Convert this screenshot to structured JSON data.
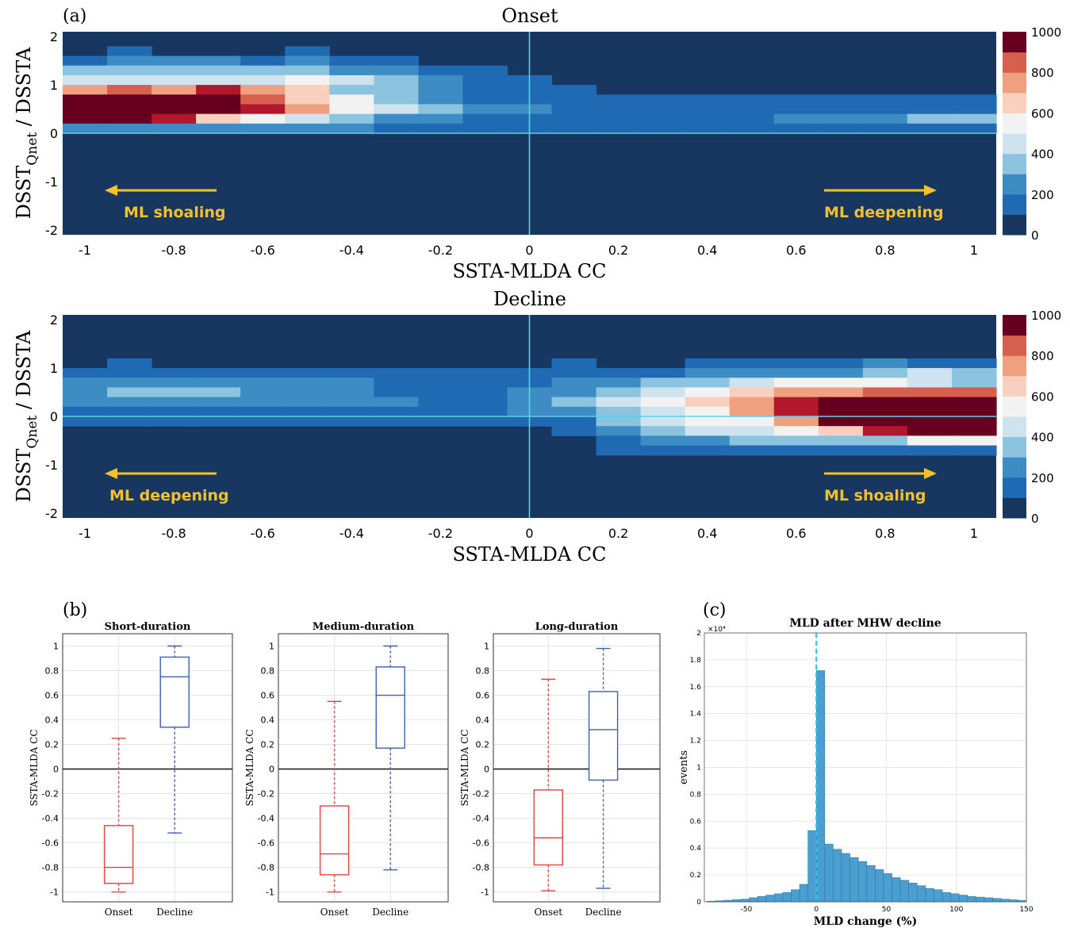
{
  "panel_labels": {
    "a": "(a)",
    "b": "(b)",
    "c": "(c)"
  },
  "chart_data": [
    {
      "type": "heatmap",
      "title": "Onset",
      "xlabel": "SSTA-MLDA  CC",
      "ylabel_main": "DSST",
      "ylabel_sub": "Qnet",
      "ylabel_tail": " / DSSTA",
      "xlim": [
        -1.05,
        1.05
      ],
      "ylim": [
        -2.1,
        2.1
      ],
      "xticks": [
        "-1",
        "-0.8",
        "-0.6",
        "-0.4",
        "-0.2",
        "0",
        "0.2",
        "0.4",
        "0.6",
        "0.8",
        "1"
      ],
      "yticks": [
        "-2",
        "-1",
        "0",
        "1",
        "2"
      ],
      "colorbar_ticks": [
        "0",
        "200",
        "400",
        "600",
        "800",
        "1000"
      ],
      "annotations": [
        {
          "text": "ML shoaling",
          "arrow": "left"
        },
        {
          "text": "ML deepening",
          "arrow": "right"
        }
      ],
      "colors": [
        "#173660",
        "#1f6ab3",
        "#3d8dc4",
        "#8cc3de",
        "#cfe3ef",
        "#f2f2f2",
        "#f8d0bd",
        "#f0a07e",
        "#d6604d",
        "#b2182b",
        "#67001f"
      ],
      "column_x_centers": [
        -1.0,
        -0.9,
        -0.8,
        -0.7,
        -0.6,
        -0.5,
        -0.4,
        -0.3,
        -0.2,
        -0.1,
        0.0,
        0.1,
        0.2,
        0.3,
        0.4,
        0.5,
        0.6,
        0.7,
        0.8,
        0.9,
        1.0
      ],
      "row_y_centers": [
        1.9,
        1.7,
        1.5,
        1.3,
        1.1,
        0.9,
        0.7,
        0.5,
        0.3,
        0.1,
        -0.1
      ],
      "levels": [
        [
          0,
          0,
          0,
          0,
          0,
          0,
          0,
          0,
          0,
          0,
          0,
          0,
          0,
          0,
          0,
          0,
          0,
          0,
          0,
          0,
          0
        ],
        [
          0,
          1,
          0,
          0,
          0,
          1,
          0,
          0,
          0,
          0,
          0,
          0,
          0,
          0,
          0,
          0,
          0,
          0,
          0,
          0,
          0
        ],
        [
          1,
          2,
          2,
          2,
          1,
          2,
          1,
          1,
          0,
          0,
          0,
          0,
          0,
          0,
          0,
          0,
          0,
          0,
          0,
          0,
          0
        ],
        [
          3,
          3,
          3,
          3,
          3,
          3,
          2,
          2,
          1,
          1,
          0,
          0,
          0,
          0,
          0,
          0,
          0,
          0,
          0,
          0,
          0
        ],
        [
          4,
          4,
          4,
          4,
          4,
          5,
          4,
          3,
          2,
          1,
          1,
          0,
          0,
          0,
          0,
          0,
          0,
          0,
          0,
          0,
          0
        ],
        [
          7,
          8,
          7,
          9,
          7,
          6,
          3,
          3,
          2,
          1,
          1,
          1,
          0,
          0,
          0,
          0,
          0,
          0,
          0,
          0,
          0
        ],
        [
          10,
          10,
          10,
          10,
          8,
          6,
          5,
          3,
          2,
          1,
          1,
          1,
          1,
          1,
          1,
          1,
          1,
          1,
          1,
          1,
          1
        ],
        [
          10,
          10,
          10,
          10,
          9,
          7,
          5,
          4,
          3,
          2,
          2,
          1,
          1,
          1,
          1,
          1,
          1,
          1,
          1,
          1,
          1
        ],
        [
          10,
          10,
          9,
          6,
          5,
          4,
          3,
          2,
          2,
          1,
          1,
          1,
          1,
          1,
          1,
          1,
          2,
          2,
          2,
          3,
          3
        ],
        [
          2,
          2,
          2,
          2,
          2,
          2,
          2,
          1,
          1,
          1,
          1,
          1,
          1,
          1,
          1,
          1,
          1,
          1,
          1,
          1,
          1
        ],
        [
          0,
          0,
          0,
          0,
          0,
          0,
          0,
          0,
          0,
          0,
          0,
          0,
          0,
          0,
          0,
          0,
          0,
          0,
          0,
          0,
          0
        ]
      ]
    },
    {
      "type": "heatmap",
      "title": "Decline",
      "xlabel": "SSTA-MLDA  CC",
      "ylabel_main": "DSST",
      "ylabel_sub": "Qnet",
      "ylabel_tail": " / DSSTA",
      "xlim": [
        -1.05,
        1.05
      ],
      "ylim": [
        -2.1,
        2.1
      ],
      "xticks": [
        "-1",
        "-0.8",
        "-0.6",
        "-0.4",
        "-0.2",
        "0",
        "0.2",
        "0.4",
        "0.6",
        "0.8",
        "1"
      ],
      "yticks": [
        "-2",
        "-1",
        "0",
        "1",
        "2"
      ],
      "colorbar_ticks": [
        "0",
        "200",
        "400",
        "600",
        "800",
        "1000"
      ],
      "annotations": [
        {
          "text": "ML deepening",
          "arrow": "left"
        },
        {
          "text": "ML shoaling",
          "arrow": "right"
        }
      ],
      "column_x_centers": [
        -1.0,
        -0.9,
        -0.8,
        -0.7,
        -0.6,
        -0.5,
        -0.4,
        -0.3,
        -0.2,
        -0.1,
        0.0,
        0.1,
        0.2,
        0.3,
        0.4,
        0.5,
        0.6,
        0.7,
        0.8,
        0.9,
        1.0
      ],
      "row_y_centers": [
        1.3,
        1.1,
        0.9,
        0.7,
        0.5,
        0.3,
        0.1,
        -0.1,
        -0.3,
        -0.5,
        -0.7,
        -0.9
      ],
      "levels": [
        [
          0,
          0,
          0,
          0,
          0,
          0,
          0,
          0,
          0,
          0,
          0,
          0,
          0,
          0,
          0,
          0,
          0,
          0,
          0,
          0,
          0
        ],
        [
          0,
          1,
          0,
          0,
          0,
          0,
          0,
          0,
          0,
          0,
          0,
          1,
          0,
          0,
          1,
          1,
          1,
          1,
          2,
          1,
          1
        ],
        [
          1,
          1,
          1,
          1,
          1,
          1,
          1,
          1,
          1,
          1,
          1,
          1,
          1,
          1,
          2,
          2,
          2,
          2,
          3,
          4,
          3
        ],
        [
          2,
          2,
          2,
          2,
          2,
          2,
          2,
          1,
          1,
          1,
          1,
          2,
          2,
          3,
          3,
          4,
          5,
          5,
          5,
          4,
          3
        ],
        [
          2,
          3,
          3,
          3,
          2,
          2,
          2,
          1,
          1,
          1,
          2,
          2,
          3,
          4,
          5,
          6,
          7,
          7,
          8,
          8,
          8
        ],
        [
          2,
          2,
          2,
          2,
          2,
          2,
          2,
          2,
          1,
          1,
          2,
          3,
          4,
          5,
          6,
          7,
          9,
          10,
          10,
          10,
          10
        ],
        [
          1,
          1,
          1,
          1,
          1,
          1,
          1,
          1,
          1,
          1,
          2,
          2,
          3,
          4,
          5,
          7,
          9,
          10,
          10,
          10,
          10
        ],
        [
          1,
          1,
          1,
          1,
          1,
          1,
          1,
          1,
          1,
          1,
          1,
          1,
          3,
          4,
          5,
          5,
          7,
          10,
          10,
          10,
          10
        ],
        [
          0,
          0,
          0,
          0,
          0,
          0,
          0,
          0,
          0,
          0,
          0,
          1,
          2,
          3,
          4,
          4,
          5,
          6,
          9,
          10,
          10
        ],
        [
          0,
          0,
          0,
          0,
          0,
          0,
          0,
          0,
          0,
          0,
          0,
          0,
          1,
          2,
          2,
          3,
          3,
          3,
          3,
          5,
          5
        ],
        [
          0,
          0,
          0,
          0,
          0,
          0,
          0,
          0,
          0,
          0,
          0,
          0,
          1,
          1,
          1,
          1,
          1,
          1,
          1,
          1,
          1
        ],
        [
          0,
          0,
          0,
          0,
          0,
          0,
          0,
          0,
          0,
          0,
          0,
          0,
          0,
          0,
          0,
          0,
          0,
          0,
          0,
          0,
          0
        ]
      ]
    },
    {
      "type": "box",
      "title": "Short-duration",
      "ylabel": "SSTA-MLDA CC",
      "categories": [
        "Onset",
        "Decline"
      ],
      "yticks": [
        "-1",
        "-0.8",
        "-0.6",
        "-0.4",
        "-0.2",
        "0",
        "0.2",
        "0.4",
        "0.6",
        "0.8",
        "1"
      ],
      "ylim": [
        -1.08,
        1.1
      ],
      "boxes": [
        {
          "min": -1.0,
          "q1": -0.93,
          "median": -0.8,
          "q3": -0.46,
          "max": 0.25,
          "color": "#e0443c"
        },
        {
          "min": -0.52,
          "q1": 0.34,
          "median": 0.75,
          "q3": 0.91,
          "max": 1.0,
          "color": "#3f5fb0"
        }
      ]
    },
    {
      "type": "box",
      "title": "Medium-duration",
      "ylabel": "SSTA-MLDA CC",
      "categories": [
        "Onset",
        "Decline"
      ],
      "yticks": [
        "-1",
        "-0.8",
        "-0.6",
        "-0.4",
        "-0.2",
        "0",
        "0.2",
        "0.4",
        "0.6",
        "0.8",
        "1"
      ],
      "ylim": [
        -1.08,
        1.1
      ],
      "boxes": [
        {
          "min": -1.0,
          "q1": -0.86,
          "median": -0.69,
          "q3": -0.3,
          "max": 0.55,
          "color": "#e0443c"
        },
        {
          "min": -0.82,
          "q1": 0.17,
          "median": 0.6,
          "q3": 0.83,
          "max": 1.0,
          "color": "#3f5fb0"
        }
      ]
    },
    {
      "type": "box",
      "title": "Long-duration",
      "ylabel": "SSTA-MLDA CC",
      "categories": [
        "Onset",
        "Decline"
      ],
      "yticks": [
        "-1",
        "-0.8",
        "-0.6",
        "-0.4",
        "-0.2",
        "0",
        "0.2",
        "0.4",
        "0.6",
        "0.8",
        "1"
      ],
      "ylim": [
        -1.08,
        1.1
      ],
      "boxes": [
        {
          "min": -0.99,
          "q1": -0.78,
          "median": -0.56,
          "q3": -0.17,
          "max": 0.73,
          "color": "#e0443c"
        },
        {
          "min": -0.97,
          "q1": -0.09,
          "median": 0.32,
          "q3": 0.63,
          "max": 0.98,
          "color": "#3f5fb0"
        }
      ]
    },
    {
      "type": "bar",
      "title": "MLD  after  MHW  decline",
      "xlabel": "MLD  change  (%)",
      "ylabel": "events",
      "yexponent": "×10⁴",
      "xlim": [
        -80,
        150
      ],
      "ylim": [
        0,
        2
      ],
      "xticks": [
        "-50",
        "0",
        "50",
        "100",
        "150"
      ],
      "yticks": [
        "0",
        "0.2",
        "0.4",
        "0.6",
        "0.8",
        "1",
        "1.2",
        "1.4",
        "1.6",
        "1.8",
        "2"
      ],
      "bin_width": 6,
      "bin_starts": [
        -78,
        -72,
        -66,
        -60,
        -54,
        -48,
        -42,
        -36,
        -30,
        -24,
        -18,
        -12,
        -6,
        0,
        6,
        12,
        18,
        24,
        30,
        36,
        42,
        48,
        54,
        60,
        66,
        72,
        78,
        84,
        90,
        96,
        102,
        108,
        114,
        120,
        126,
        132,
        138,
        144
      ],
      "values": [
        0.005,
        0.008,
        0.012,
        0.016,
        0.02,
        0.03,
        0.04,
        0.05,
        0.06,
        0.07,
        0.09,
        0.13,
        0.53,
        1.72,
        0.43,
        0.39,
        0.36,
        0.33,
        0.3,
        0.27,
        0.24,
        0.21,
        0.18,
        0.16,
        0.14,
        0.12,
        0.1,
        0.09,
        0.07,
        0.06,
        0.05,
        0.04,
        0.035,
        0.03,
        0.025,
        0.02,
        0.015,
        0.01
      ],
      "bar_color": "#4a9fd0",
      "vline_x": 0
    }
  ]
}
